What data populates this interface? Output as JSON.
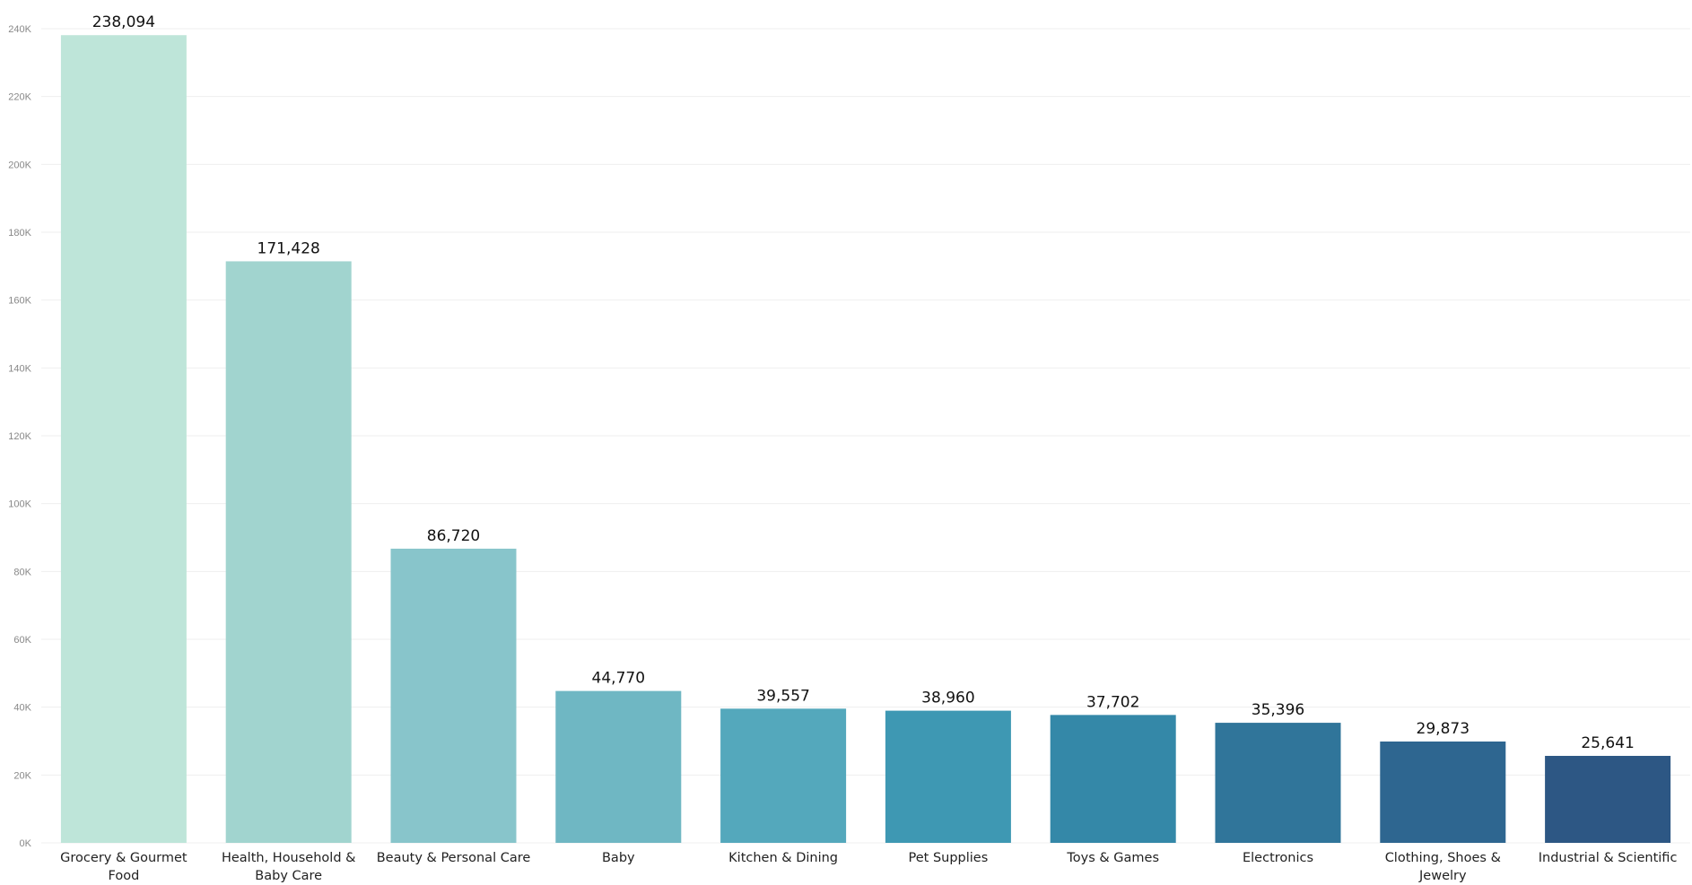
{
  "chart_data": {
    "type": "bar",
    "title": "",
    "xlabel": "",
    "ylabel": "",
    "ylim": [
      0,
      240000
    ],
    "yticks": [
      0,
      20000,
      40000,
      60000,
      80000,
      100000,
      120000,
      140000,
      160000,
      180000,
      200000,
      220000,
      240000
    ],
    "ytick_labels": [
      "0K",
      "20K",
      "40K",
      "60K",
      "80K",
      "100K",
      "120K",
      "140K",
      "160K",
      "180K",
      "200K",
      "220K",
      "240K"
    ],
    "grid": true,
    "legend": "none",
    "categories": [
      "Grocery & Gourmet Food",
      "Health, Household & Baby Care",
      "Beauty & Personal Care",
      "Baby",
      "Kitchen & Dining",
      "Pet Supplies",
      "Toys & Games",
      "Electronics",
      "Clothing, Shoes & Jewelry",
      "Industrial & Scientific"
    ],
    "values": [
      238094,
      171428,
      86720,
      44770,
      39557,
      38960,
      37702,
      35396,
      29873,
      25641
    ],
    "data_labels": [
      "238,094",
      "171,428",
      "86,720",
      "44,770",
      "39,557",
      "38,960",
      "37,702",
      "35,396",
      "29,873",
      "25,641"
    ],
    "colors": [
      "#bee5d9",
      "#a1d4cf",
      "#88c5cb",
      "#6fb7c3",
      "#54a8bc",
      "#3e98b3",
      "#3488a8",
      "#30759a",
      "#2e6690",
      "#2d5784"
    ]
  }
}
